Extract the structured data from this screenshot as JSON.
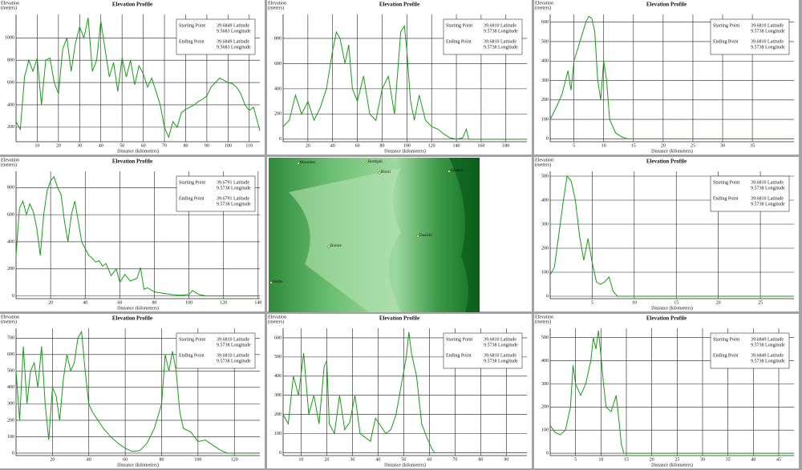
{
  "chart_data": [
    {
      "type": "line",
      "title": "Elevation Profile",
      "y_label": [
        "Elevation",
        "(meters)"
      ],
      "x_label": "Distance (kilometers)",
      "color": "#1a9a1a",
      "grid": true,
      "legend": {
        "start_label": "Starting Point",
        "start_lat": "39.6849 Latitude",
        "start_lon": "9.5683 Longitude",
        "end_label": "Ending Point",
        "end_lat": "39.6849 Latitude",
        "end_lon": "9.5683 Longitude"
      },
      "xlim": [
        0,
        115
      ],
      "xticks": [
        10,
        20,
        30,
        40,
        50,
        60,
        70,
        80,
        90,
        100,
        110
      ],
      "ylim": [
        70,
        1210
      ],
      "yticks": [
        200,
        400,
        600,
        800,
        1000
      ],
      "x": [
        0,
        2,
        4,
        6,
        8,
        10,
        12,
        14,
        16,
        18,
        20,
        22,
        24,
        26,
        28,
        30,
        32,
        34,
        36,
        38,
        40,
        42,
        44,
        46,
        48,
        50,
        52,
        54,
        56,
        58,
        60,
        62,
        64,
        66,
        68,
        70,
        72,
        74,
        76,
        78,
        80,
        82,
        84,
        86,
        88,
        90,
        92,
        94,
        96,
        98,
        100,
        102,
        104,
        106,
        108,
        110,
        112,
        115
      ],
      "values": [
        250,
        180,
        650,
        800,
        700,
        820,
        400,
        800,
        820,
        600,
        500,
        900,
        1000,
        700,
        950,
        1100,
        1000,
        1180,
        700,
        800,
        1150,
        900,
        650,
        780,
        520,
        820,
        650,
        800,
        580,
        750,
        680,
        560,
        640,
        520,
        400,
        200,
        110,
        250,
        200,
        330,
        360,
        380,
        400,
        430,
        450,
        480,
        560,
        600,
        640,
        620,
        600,
        590,
        560,
        500,
        400,
        350,
        380,
        170
      ]
    },
    {
      "type": "line",
      "title": "Elevation Profile",
      "y_label": [
        "Elevation",
        "(meters)"
      ],
      "x_label": "Distance (kilometers)",
      "color": "#1a9a1a",
      "grid": true,
      "legend": {
        "start_label": "Starting Point",
        "start_lat": "39.6810 Latitude",
        "start_lon": "9.5738 Longitude",
        "end_label": "Ending Point",
        "end_lat": "39.6810 Latitude",
        "end_lon": "9.5738 Longitude"
      },
      "xlim": [
        0,
        197
      ],
      "xticks": [
        20,
        40,
        60,
        80,
        100,
        120,
        140,
        160,
        180
      ],
      "ylim": [
        -20,
        990
      ],
      "yticks": [
        0,
        200,
        400,
        600,
        800
      ],
      "x": [
        0,
        5,
        10,
        15,
        20,
        25,
        30,
        35,
        40,
        43,
        46,
        50,
        53,
        56,
        60,
        65,
        70,
        75,
        80,
        85,
        90,
        95,
        98,
        100,
        103,
        106,
        110,
        115,
        120,
        125,
        130,
        135,
        140,
        145,
        148,
        150,
        197
      ],
      "values": [
        100,
        150,
        350,
        200,
        300,
        150,
        250,
        400,
        700,
        850,
        800,
        600,
        750,
        400,
        300,
        500,
        200,
        150,
        400,
        500,
        200,
        850,
        900,
        700,
        300,
        150,
        350,
        150,
        100,
        80,
        40,
        10,
        0,
        10,
        80,
        0,
        0
      ]
    },
    {
      "type": "line",
      "title": "Elevation Profile",
      "y_label": [
        "Elevation",
        "(meters)"
      ],
      "x_label": "Distance (kilometers)",
      "color": "#1a9a1a",
      "grid": true,
      "legend": {
        "start_label": "Starting Point",
        "start_lat": "39.6810 Latitude",
        "start_lon": "9.5738 Longitude",
        "end_label": "Ending Point",
        "end_lat": "39.6810 Latitude",
        "end_lon": "9.5738 Longitude"
      },
      "xlim": [
        1,
        42
      ],
      "xticks": [
        5,
        10,
        15,
        20,
        25,
        30,
        35
      ],
      "ylim": [
        -15,
        640
      ],
      "yticks": [
        0,
        100,
        200,
        300,
        400,
        500,
        600
      ],
      "x": [
        1,
        2,
        3,
        4,
        4.5,
        5,
        6,
        7,
        7.5,
        8,
        8.5,
        9,
        9.5,
        10,
        10.5,
        11,
        12,
        13,
        14,
        42
      ],
      "values": [
        100,
        160,
        230,
        350,
        250,
        400,
        500,
        600,
        630,
        620,
        550,
        300,
        200,
        400,
        300,
        100,
        30,
        10,
        0,
        0
      ]
    },
    {
      "type": "line",
      "title": "Elevation Profile",
      "y_label": [
        "Elevation",
        "(meters)"
      ],
      "x_label": "Distance (kilometers)",
      "color": "#1a9a1a",
      "grid": true,
      "legend": {
        "start_label": "Starting Point",
        "start_lat": "39.6791 Latitude",
        "start_lon": "9.5738 Longitude",
        "end_label": "Ending Point",
        "end_lat": "39.6791 Latitude",
        "end_lon": "9.5738 Longitude"
      },
      "xlim": [
        0,
        141
      ],
      "xticks": [
        20,
        40,
        60,
        80,
        100,
        120,
        140
      ],
      "ylim": [
        -20,
        920
      ],
      "yticks": [
        0,
        200,
        400,
        600,
        800
      ],
      "x": [
        0,
        2,
        4,
        6,
        8,
        10,
        12,
        14,
        16,
        18,
        20,
        22,
        24,
        26,
        28,
        30,
        32,
        34,
        36,
        38,
        40,
        42,
        44,
        46,
        48,
        50,
        52,
        55,
        58,
        60,
        63,
        66,
        70,
        72,
        74,
        76,
        80,
        85,
        90,
        95,
        100,
        102,
        104,
        106,
        110,
        141
      ],
      "values": [
        300,
        650,
        700,
        600,
        680,
        620,
        500,
        300,
        600,
        780,
        850,
        880,
        800,
        750,
        550,
        400,
        600,
        700,
        550,
        400,
        350,
        300,
        280,
        250,
        260,
        220,
        240,
        150,
        200,
        100,
        160,
        110,
        130,
        210,
        50,
        60,
        30,
        20,
        10,
        5,
        10,
        40,
        25,
        10,
        0,
        0
      ]
    },
    {
      "type": "line",
      "title": "Elevation Profile",
      "y_label": [
        "Elevation",
        "(meters)"
      ],
      "x_label": "Distance (kilometers)",
      "color": "#1a9a1a",
      "grid": true,
      "legend": {
        "start_label": "Starting Point",
        "start_lat": "39.6810 Latitude",
        "start_lon": "9.5738 Longitude",
        "end_label": "Ending Point",
        "end_lat": "39.6810 Latitude",
        "end_lon": "9.5738 Longitude"
      },
      "xlim": [
        0,
        29
      ],
      "xticks": [
        5,
        10,
        15,
        20,
        25
      ],
      "ylim": [
        -10,
        520
      ],
      "yticks": [
        0,
        100,
        200,
        300,
        400,
        500
      ],
      "x": [
        0,
        0.5,
        1,
        1.5,
        2,
        2.5,
        3,
        3.5,
        4,
        4.5,
        5,
        5.5,
        6,
        6.5,
        7,
        7.5,
        8,
        29
      ],
      "values": [
        90,
        120,
        250,
        380,
        500,
        480,
        400,
        250,
        150,
        240,
        140,
        60,
        50,
        60,
        80,
        20,
        0,
        0
      ]
    },
    {
      "type": "line",
      "title": "Elevation Profile",
      "y_label": [
        "Elevation",
        "(meters)"
      ],
      "x_label": "Distance (kilometers)",
      "color": "#1a9a1a",
      "grid": true,
      "legend": {
        "start_label": "Starting Point",
        "start_lat": "39.6810 Latitude",
        "start_lon": "9.5738 Longitude",
        "end_label": "Ending Point",
        "end_lat": "39.6810 Latitude",
        "end_lon": "9.5738 Longitude"
      },
      "xlim": [
        0,
        134
      ],
      "xticks": [
        20,
        40,
        60,
        80,
        100,
        120
      ],
      "ylim": [
        -15,
        760
      ],
      "yticks": [
        0,
        100,
        200,
        300,
        400,
        500,
        600,
        700
      ],
      "x": [
        0,
        2,
        4,
        6,
        8,
        10,
        12,
        14,
        16,
        18,
        20,
        22,
        24,
        26,
        28,
        30,
        32,
        34,
        36,
        38,
        40,
        42,
        45,
        48,
        52,
        56,
        60,
        64,
        68,
        72,
        76,
        80,
        82,
        84,
        86,
        88,
        90,
        92,
        96,
        100,
        104,
        108,
        112,
        116,
        134
      ],
      "values": [
        500,
        200,
        650,
        300,
        500,
        550,
        400,
        650,
        300,
        80,
        400,
        350,
        200,
        450,
        600,
        500,
        550,
        700,
        740,
        500,
        300,
        250,
        200,
        150,
        100,
        60,
        30,
        10,
        15,
        60,
        150,
        300,
        600,
        500,
        620,
        500,
        250,
        150,
        130,
        70,
        80,
        50,
        20,
        0,
        0
      ]
    },
    {
      "type": "line",
      "title": "Elevation Profile",
      "y_label": [
        "Elevation",
        "(meters)"
      ],
      "x_label": "Distance (kilometers)",
      "color": "#1a9a1a",
      "grid": true,
      "legend": {
        "start_label": "Starting Point",
        "start_lat": "39.6810 Latitude",
        "start_lon": "9.5738 Longitude",
        "end_label": "Ending Point",
        "end_lat": "39.6810 Latitude",
        "end_lon": "9.5738 Longitude"
      },
      "xlim": [
        3,
        98
      ],
      "xticks": [
        10,
        20,
        30,
        40,
        50,
        60,
        70,
        80,
        90
      ],
      "ylim": [
        -15,
        650
      ],
      "yticks": [
        0,
        100,
        200,
        300,
        400,
        500,
        600
      ],
      "x": [
        3,
        5,
        7,
        9,
        11,
        13,
        15,
        17,
        19,
        20,
        21,
        23,
        25,
        27,
        29,
        31,
        33,
        35,
        37,
        39,
        41,
        43,
        45,
        47,
        49,
        51,
        52,
        53,
        55,
        57,
        59,
        61,
        62,
        98
      ],
      "values": [
        200,
        150,
        400,
        300,
        520,
        200,
        300,
        150,
        450,
        480,
        150,
        100,
        300,
        120,
        160,
        300,
        100,
        80,
        60,
        180,
        140,
        100,
        120,
        200,
        350,
        500,
        630,
        520,
        400,
        150,
        80,
        20,
        0,
        0
      ]
    },
    {
      "type": "line",
      "title": "Elevation Profile",
      "y_label": [
        "Elevation",
        "(meters)"
      ],
      "x_label": "Distance (kilometers)",
      "color": "#1a9a1a",
      "grid": true,
      "legend": {
        "start_label": "Starting Point",
        "start_lat": "39.6849 Latitude",
        "start_lon": "9.5738 Longitude",
        "end_label": "Ending Point",
        "end_lat": "39.6849 Latitude",
        "end_lon": "9.5738 Longitude"
      },
      "xlim": [
        0,
        48
      ],
      "xticks": [
        5,
        10,
        15,
        20,
        25,
        30,
        35,
        40,
        45
      ],
      "ylim": [
        -10,
        540
      ],
      "yticks": [
        0,
        100,
        200,
        300,
        400,
        500
      ],
      "x": [
        0,
        1,
        2,
        3,
        4,
        4.5,
        5,
        6,
        7,
        8,
        8.5,
        9,
        9.5,
        10,
        10.5,
        11,
        12,
        13,
        13.5,
        14,
        14.5,
        48
      ],
      "values": [
        120,
        90,
        80,
        100,
        200,
        380,
        300,
        250,
        300,
        400,
        500,
        450,
        530,
        420,
        300,
        200,
        180,
        250,
        150,
        40,
        0,
        0
      ]
    }
  ],
  "map": {
    "places": [
      "Macomer",
      "Bortigali",
      "Birori",
      "Silanus",
      "Dualchi",
      "Borore",
      "Sedilo"
    ]
  }
}
